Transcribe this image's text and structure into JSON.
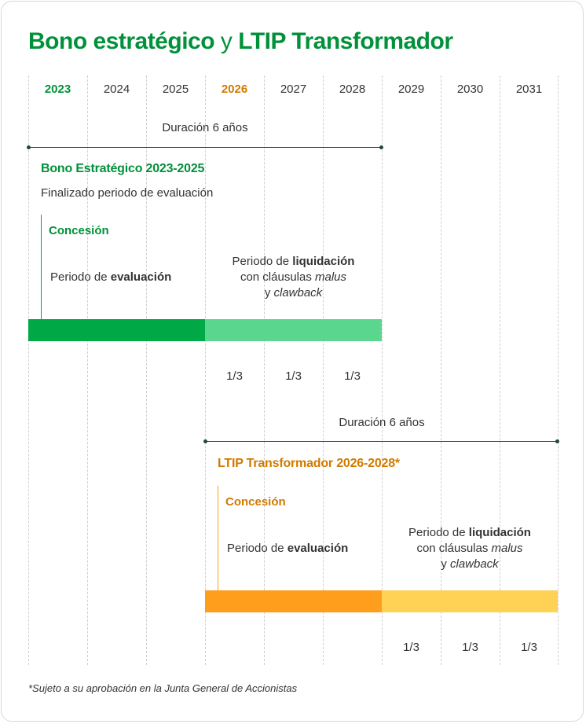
{
  "title_main": "Bono estratégico",
  "title_y": "y",
  "title_rest": "LTIP Transformador",
  "years": [
    "2023",
    "2024",
    "2025",
    "2026",
    "2027",
    "2028",
    "2029",
    "2030",
    "2031"
  ],
  "bono": {
    "duration": "Duración 6 años",
    "heading": "Bono Estratégico 2023-2025",
    "status": "Finalizado periodo de evaluación",
    "concesion": "Concesión",
    "eval_prefix": "Periodo de",
    "eval_bold": "evaluación",
    "liq_prefix": "Periodo de",
    "liq_bold": "liquidación",
    "liq_line2_prefix": "con cláusulas",
    "liq_line2_italic": "malus",
    "liq_line3_prefix": "y",
    "liq_line3_italic": "clawback",
    "fractions": [
      "1/3",
      "1/3",
      "1/3"
    ],
    "eval_color": "#00a846",
    "liq_color": "#5ad68e"
  },
  "ltip": {
    "duration": "Duración 6 años",
    "heading": "LTIP Transformador 2026-2028*",
    "concesion": "Concesión",
    "eval_prefix": "Periodo de",
    "eval_bold": "evaluación",
    "liq_prefix": "Periodo de",
    "liq_bold": "liquidación",
    "liq_line2_prefix": "con cláusulas",
    "liq_line2_italic": "malus",
    "liq_line3_prefix": "y",
    "liq_line3_italic": "clawback",
    "fractions": [
      "1/3",
      "1/3",
      "1/3"
    ],
    "eval_color": "#ff9d1c",
    "liq_color": "#ffd155"
  },
  "footnote": "*Sujeto a su aprobación en la Junta General de Accionistas",
  "colors": {
    "green": "#00913a",
    "orange": "#d17a00",
    "line": "#1f4a36"
  }
}
